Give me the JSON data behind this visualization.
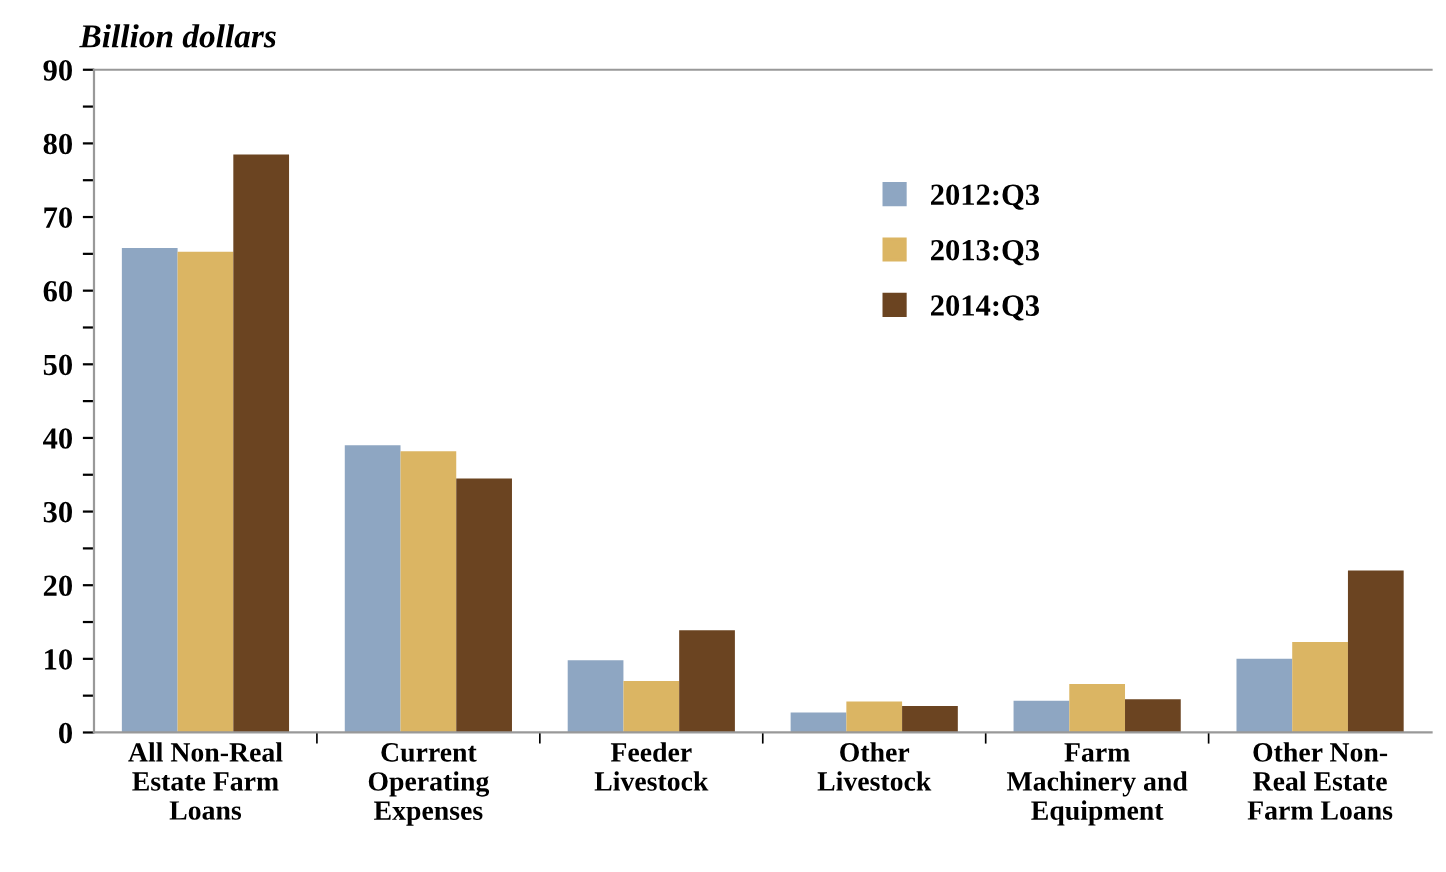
{
  "chart_data": {
    "type": "bar",
    "ylabel": "Billion dollars",
    "categories": [
      "All Non-Real\nEstate Farm\nLoans",
      "Current\nOperating\nExpenses",
      "Feeder\nLivestock",
      "Other\nLivestock",
      "Farm\nMachinery and\nEquipment",
      "Other Non-\nReal Estate\nFarm Loans"
    ],
    "series": [
      {
        "name": "2012:Q3",
        "color": "#8ea6c2",
        "values": [
          65.8,
          39,
          9.8,
          2.7,
          4.3,
          10
        ]
      },
      {
        "name": "2013:Q3",
        "color": "#dbb563",
        "values": [
          65.3,
          38.2,
          7,
          4.2,
          6.6,
          12.3
        ]
      },
      {
        "name": "2014:Q3",
        "color": "#6b4421",
        "values": [
          78.5,
          34.5,
          13.9,
          3.6,
          4.5,
          22
        ]
      }
    ],
    "ylim": [
      0,
      90
    ],
    "yticks": [
      0,
      {
        "value": 5,
        "label": null
      },
      10,
      {
        "value": 15,
        "label": null
      },
      20,
      {
        "value": 25,
        "label": null
      },
      30,
      {
        "value": 35,
        "label": null
      },
      40,
      {
        "value": 45,
        "label": null
      },
      50,
      {
        "value": 55,
        "label": null
      },
      60,
      {
        "value": 65,
        "label": null
      },
      70,
      {
        "value": 75,
        "label": null
      },
      80,
      {
        "value": 85,
        "label": null
      },
      90
    ],
    "grid": false,
    "legend": "top"
  }
}
